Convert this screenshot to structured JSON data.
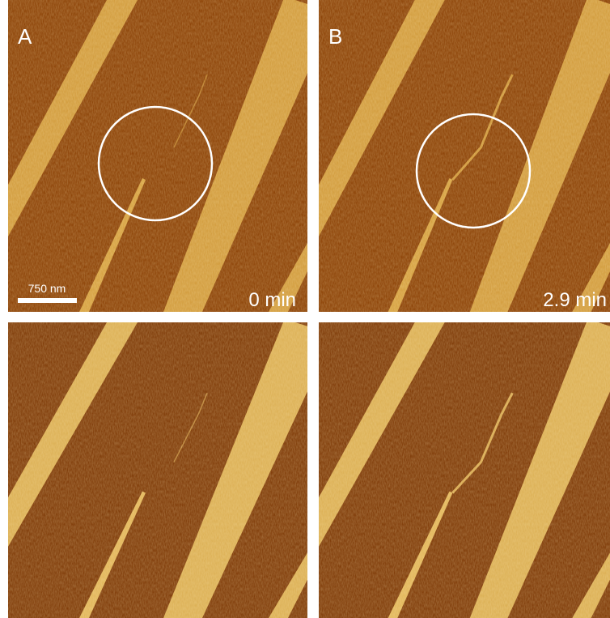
{
  "panels": [
    {
      "label": "A",
      "time": "0 min",
      "scale_bar": "750 nm"
    },
    {
      "label": "B",
      "time": "2.9 min"
    }
  ]
}
